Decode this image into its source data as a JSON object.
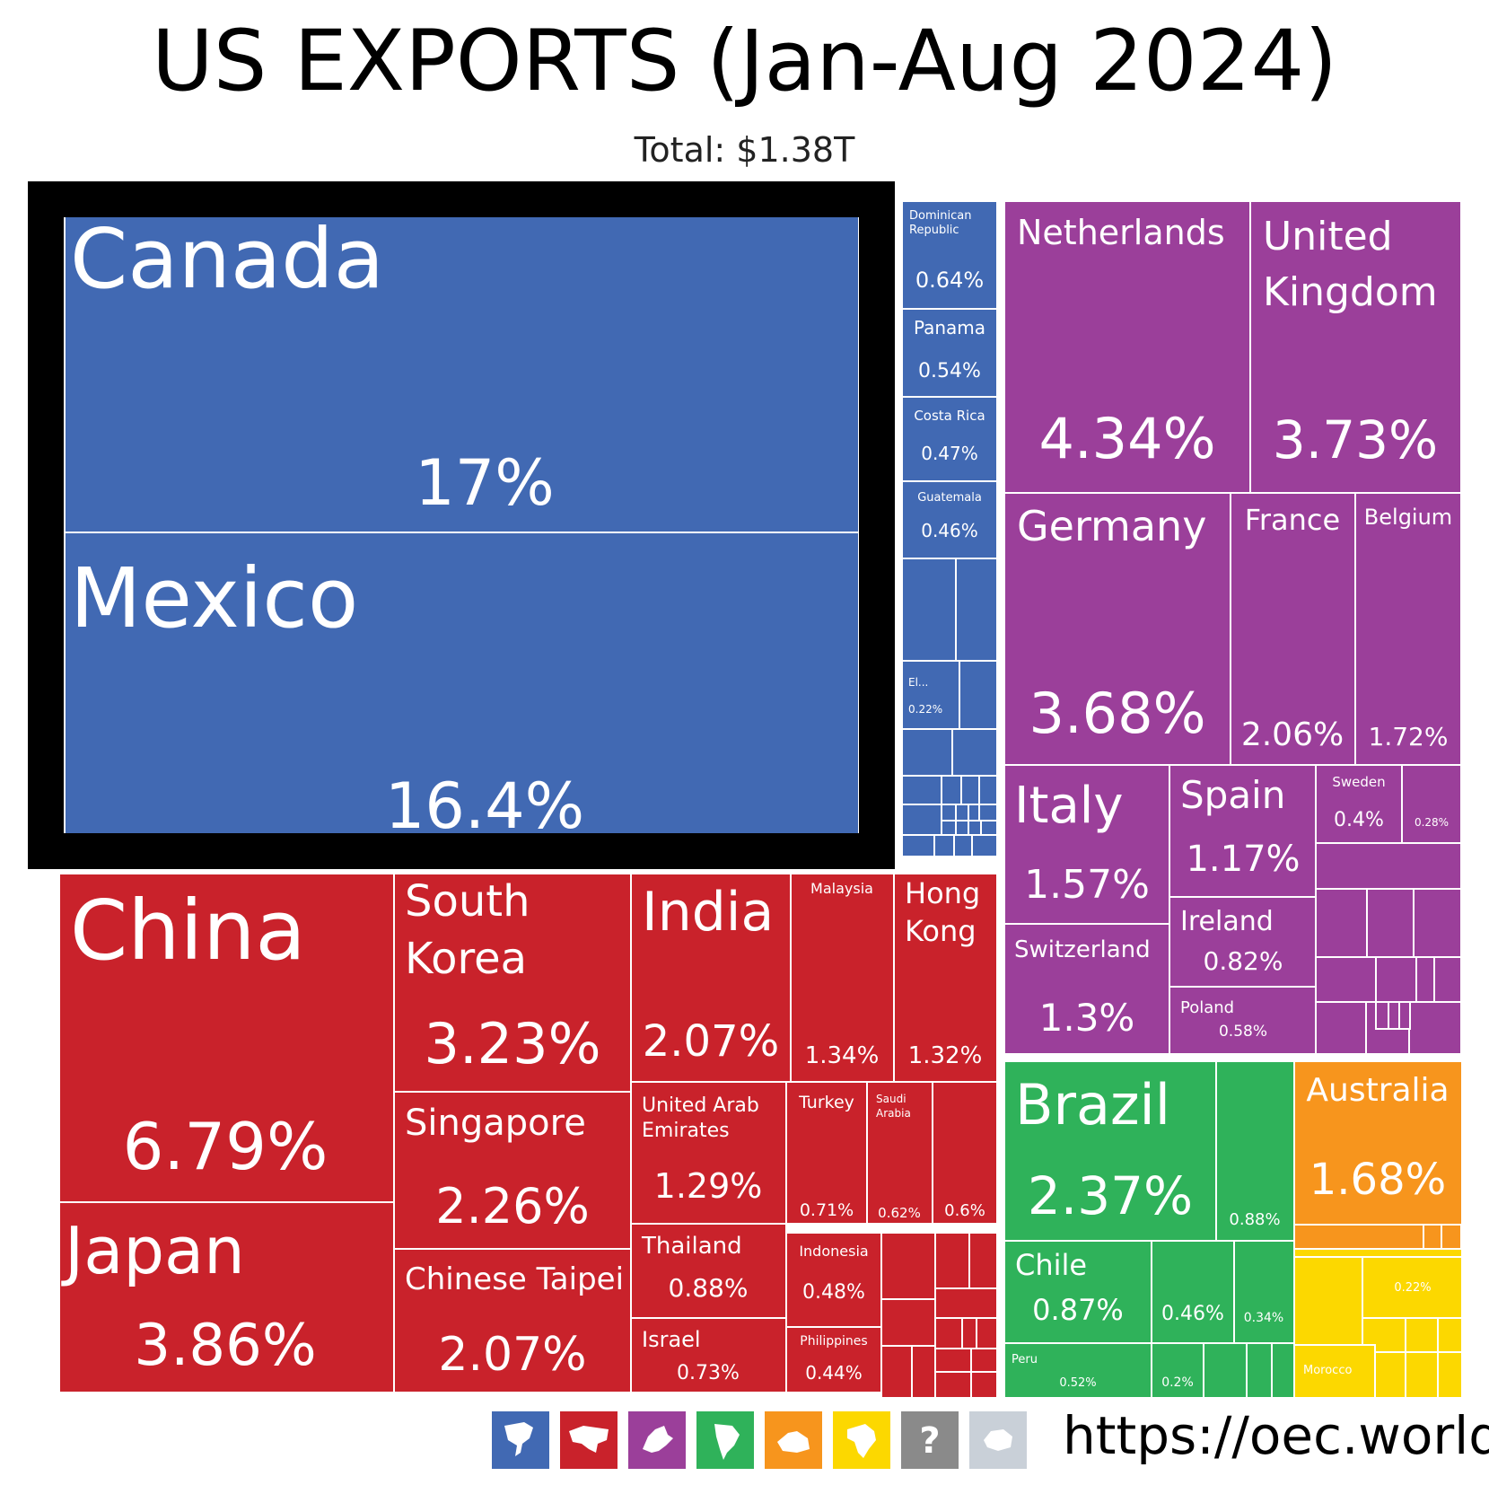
{
  "title": "US EXPORTS (Jan-Aug 2024)",
  "subtitle": "Total: $1.38T",
  "source_url": "https://oec.world",
  "chart_data": {
    "type": "treemap",
    "title": "US EXPORTS (Jan-Aug 2024)",
    "total": "$1.38T",
    "unit": "% of total exports",
    "highlighted": [
      "Canada",
      "Mexico"
    ],
    "regions": [
      {
        "name": "North America",
        "color": "#4169b3",
        "icon": "north-america-icon"
      },
      {
        "name": "Asia",
        "color": "#c9222b",
        "icon": "asia-icon"
      },
      {
        "name": "Europe",
        "color": "#9b3f9a",
        "icon": "europe-icon"
      },
      {
        "name": "South America",
        "color": "#2fb25a",
        "icon": "south-america-icon"
      },
      {
        "name": "Oceania",
        "color": "#f7951d",
        "icon": "oceania-icon"
      },
      {
        "name": "Africa",
        "color": "#fcd800",
        "icon": "africa-icon"
      },
      {
        "name": "Unknown",
        "color": "#8a8a8a",
        "icon": "question-icon"
      },
      {
        "name": "Antarctica",
        "color": "#c9d0d8",
        "icon": "antarctica-icon"
      }
    ],
    "series": [
      {
        "name": "North America",
        "values": [
          {
            "label": "Canada",
            "value": 17,
            "text": "17%"
          },
          {
            "label": "Mexico",
            "value": 16.4,
            "text": "16.4%"
          },
          {
            "label": "Dominican Republic",
            "value": 0.64,
            "text": "0.64%"
          },
          {
            "label": "Panama",
            "value": 0.54,
            "text": "0.54%"
          },
          {
            "label": "Costa Rica",
            "value": 0.47,
            "text": "0.47%"
          },
          {
            "label": "Guatemala",
            "value": 0.46,
            "text": "0.46%"
          },
          {
            "label": "El...",
            "value": 0.22,
            "text": "0.22%"
          }
        ]
      },
      {
        "name": "Asia",
        "values": [
          {
            "label": "China",
            "value": 6.79,
            "text": "6.79%"
          },
          {
            "label": "Japan",
            "value": 3.86,
            "text": "3.86%"
          },
          {
            "label": "South Korea",
            "value": 3.23,
            "text": "3.23%"
          },
          {
            "label": "Singapore",
            "value": 2.26,
            "text": "2.26%"
          },
          {
            "label": "Chinese Taipei",
            "value": 2.07,
            "text": "2.07%"
          },
          {
            "label": "India",
            "value": 2.07,
            "text": "2.07%"
          },
          {
            "label": "Malaysia",
            "value": 1.34,
            "text": "1.34%"
          },
          {
            "label": "Hong Kong",
            "value": 1.32,
            "text": "1.32%"
          },
          {
            "label": "United Arab Emirates",
            "value": 1.29,
            "text": "1.29%"
          },
          {
            "label": "Turkey",
            "value": 0.71,
            "text": "0.71%"
          },
          {
            "label": "Saudi Arabia",
            "value": 0.62,
            "text": "0.62%"
          },
          {
            "label": "",
            "value": 0.6,
            "text": "0.6%"
          },
          {
            "label": "Thailand",
            "value": 0.88,
            "text": "0.88%"
          },
          {
            "label": "Indonesia",
            "value": 0.48,
            "text": "0.48%"
          },
          {
            "label": "Israel",
            "value": 0.73,
            "text": "0.73%"
          },
          {
            "label": "Philippines",
            "value": 0.44,
            "text": "0.44%"
          }
        ]
      },
      {
        "name": "Europe",
        "values": [
          {
            "label": "Netherlands",
            "value": 4.34,
            "text": "4.34%"
          },
          {
            "label": "United Kingdom",
            "value": 3.73,
            "text": "3.73%"
          },
          {
            "label": "Germany",
            "value": 3.68,
            "text": "3.68%"
          },
          {
            "label": "France",
            "value": 2.06,
            "text": "2.06%"
          },
          {
            "label": "Belgium",
            "value": 1.72,
            "text": "1.72%"
          },
          {
            "label": "Italy",
            "value": 1.57,
            "text": "1.57%"
          },
          {
            "label": "Spain",
            "value": 1.17,
            "text": "1.17%"
          },
          {
            "label": "Sweden",
            "value": 0.4,
            "text": "0.4%"
          },
          {
            "label": "",
            "value": 0.28,
            "text": "0.28%"
          },
          {
            "label": "Switzerland",
            "value": 1.3,
            "text": "1.3%"
          },
          {
            "label": "Ireland",
            "value": 0.82,
            "text": "0.82%"
          },
          {
            "label": "Poland",
            "value": 0.58,
            "text": "0.58%"
          }
        ]
      },
      {
        "name": "South America",
        "values": [
          {
            "label": "Brazil",
            "value": 2.37,
            "text": "2.37%"
          },
          {
            "label": "",
            "value": 0.88,
            "text": "0.88%"
          },
          {
            "label": "Chile",
            "value": 0.87,
            "text": "0.87%"
          },
          {
            "label": "",
            "value": 0.46,
            "text": "0.46%"
          },
          {
            "label": "",
            "value": 0.34,
            "text": "0.34%"
          },
          {
            "label": "Peru",
            "value": 0.52,
            "text": "0.52%"
          },
          {
            "label": "",
            "value": 0.2,
            "text": "0.2%"
          }
        ]
      },
      {
        "name": "Oceania",
        "values": [
          {
            "label": "Australia",
            "value": 1.68,
            "text": "1.68%"
          }
        ]
      },
      {
        "name": "Africa",
        "values": [
          {
            "label": "",
            "value": 0.22,
            "text": "0.22%"
          },
          {
            "label": "Morocco",
            "value": null,
            "text": ""
          }
        ]
      }
    ]
  }
}
